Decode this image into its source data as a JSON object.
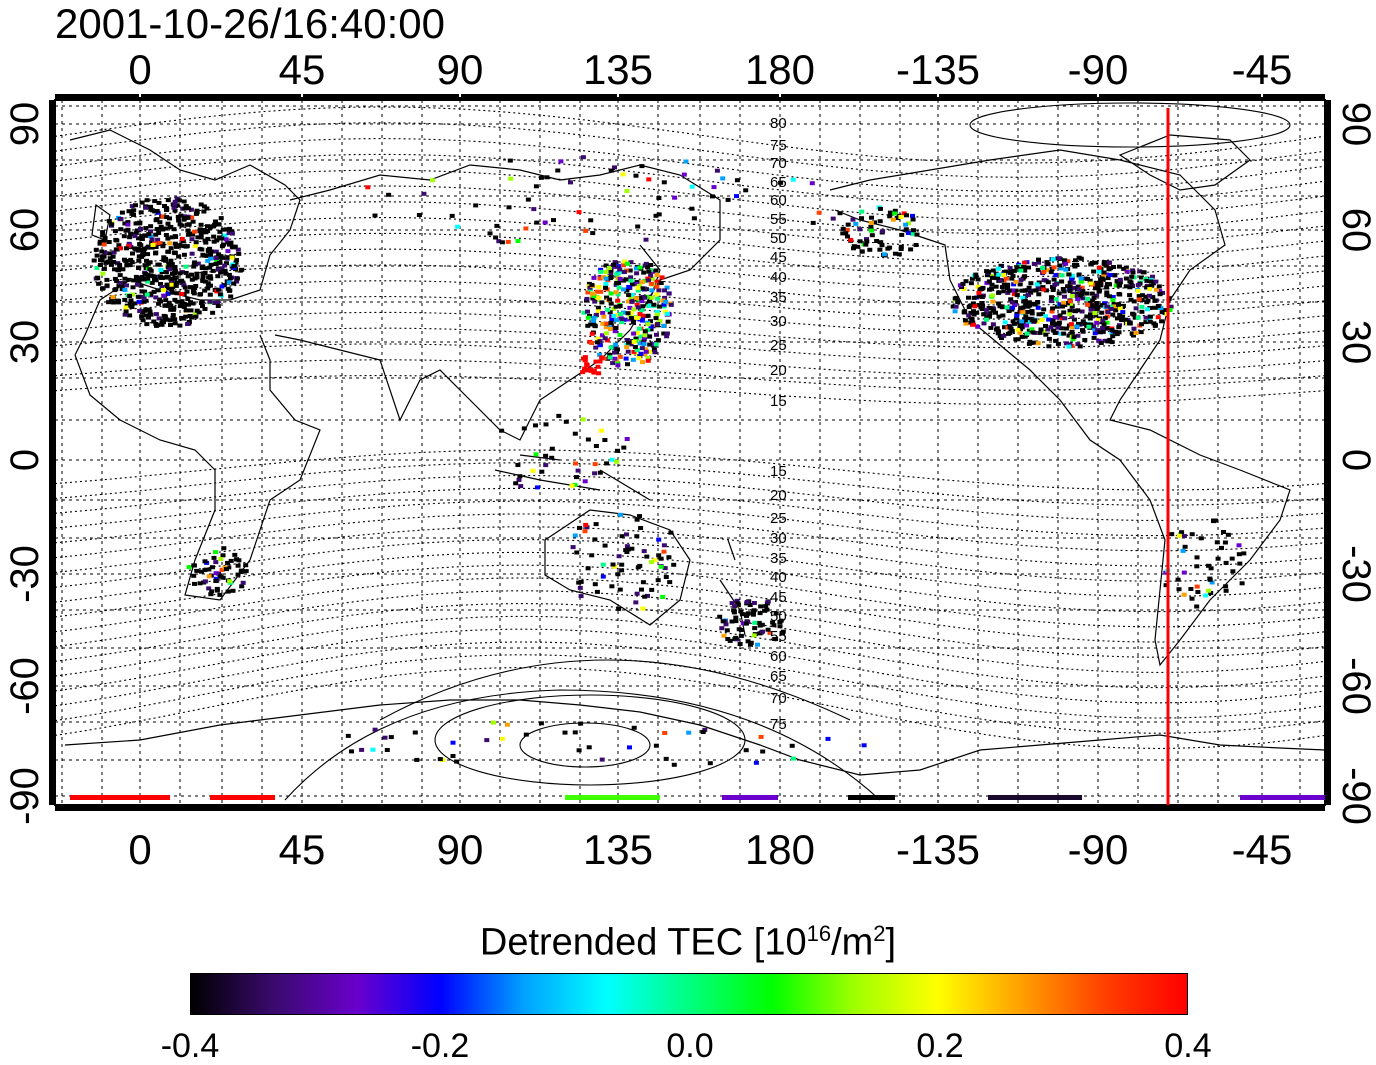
{
  "title": "2001-10-26/16:40:00",
  "colorbar": {
    "title_main": "Detrended TEC  [10",
    "title_exp1": "16",
    "title_mid": "/m",
    "title_exp2": "2",
    "title_end": "]",
    "ticks": [
      "-0.4",
      "-0.2",
      "0.0",
      "0.2",
      "0.4"
    ],
    "colors": [
      "#000000",
      "#3a0a6e",
      "#6a00cc",
      "#0000ff",
      "#00a0ff",
      "#00ffff",
      "#00ff80",
      "#00ff00",
      "#a0ff00",
      "#ffff00",
      "#ffa000",
      "#ff4000",
      "#ff0000"
    ]
  },
  "map": {
    "lon_ticks_top": [
      "0",
      "45",
      "90",
      "135",
      "180",
      "-135",
      "-90",
      "-45"
    ],
    "lon_ticks_bottom": [
      "0",
      "45",
      "90",
      "135",
      "180",
      "-135",
      "-90",
      "-45"
    ],
    "lat_ticks_left": [
      "90",
      "60",
      "30",
      "0",
      "-30",
      "-60",
      "-90"
    ],
    "lat_ticks_right": [
      "90",
      "60",
      "30",
      "0",
      "-30",
      "-60",
      "-90"
    ],
    "north_contour_labels": [
      "80",
      "75",
      "70",
      "65",
      "60",
      "55",
      "50",
      "45",
      "40",
      "35",
      "30",
      "25",
      "20",
      "15"
    ],
    "south_contour_labels": [
      "15",
      "20",
      "25",
      "30",
      "35",
      "40",
      "45",
      "50",
      "55",
      "60",
      "65",
      "70",
      "75"
    ],
    "marker_line_color": "#ff0000"
  }
}
